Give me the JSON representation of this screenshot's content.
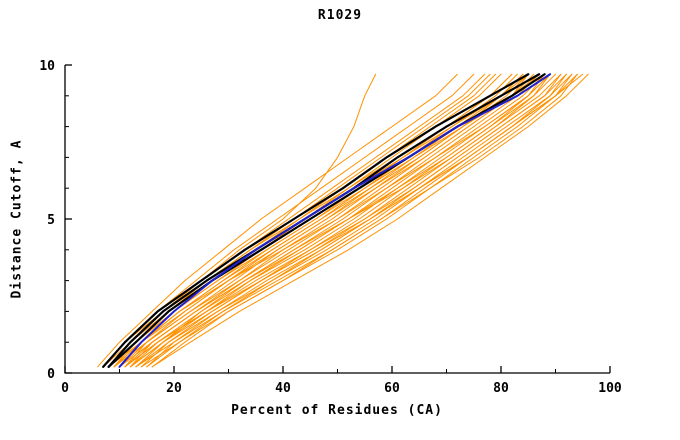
{
  "chart_data": {
    "type": "line",
    "title": "R1029",
    "xlabel": "Percent of Residues (CA)",
    "ylabel": "Distance Cutoff, A",
    "xlim": [
      0,
      100
    ],
    "ylim": [
      0,
      10
    ],
    "grid": "off",
    "legend": "none",
    "x_ticks": [
      0,
      20,
      40,
      60,
      80,
      100
    ],
    "x_minor_ticks": [
      10,
      30,
      50,
      70,
      90
    ],
    "y_ticks": [
      0,
      5,
      10
    ],
    "y_minor_ticks": [
      1,
      2,
      3,
      4,
      6,
      7,
      8,
      9
    ],
    "y_grid": [
      0.2,
      1,
      2,
      3,
      4,
      5,
      6,
      7,
      8,
      9,
      9.7
    ],
    "series_groups": [
      {
        "name": "model-curves",
        "color": "#ff9100",
        "width": 1,
        "series": [
          [
            7,
            11,
            17,
            24,
            31,
            39,
            47,
            55,
            63,
            71,
            75
          ],
          [
            8,
            12,
            19,
            26,
            34,
            42,
            50,
            58,
            66,
            74,
            78
          ],
          [
            9,
            13,
            20,
            28,
            36,
            44,
            52,
            60,
            68,
            76,
            80
          ],
          [
            10,
            14,
            21,
            29,
            37,
            46,
            54,
            62,
            70,
            78,
            82
          ],
          [
            11,
            15,
            23,
            31,
            39,
            48,
            56,
            64,
            72,
            80,
            84
          ],
          [
            12,
            16,
            24,
            32,
            41,
            50,
            58,
            66,
            74,
            82,
            86
          ],
          [
            13,
            18,
            26,
            34,
            43,
            52,
            60,
            68,
            76,
            84,
            88
          ],
          [
            14,
            19,
            27,
            36,
            45,
            54,
            62,
            70,
            78,
            86,
            90
          ],
          [
            15,
            20,
            29,
            38,
            47,
            56,
            64,
            72,
            80,
            88,
            92
          ],
          [
            16,
            22,
            30,
            40,
            49,
            58,
            66,
            74,
            82,
            90,
            95
          ],
          [
            6,
            10,
            16,
            22,
            29,
            36,
            44,
            52,
            60,
            68,
            72
          ],
          [
            8,
            13,
            20,
            27,
            35,
            43,
            51,
            59,
            67,
            75,
            79
          ],
          [
            9,
            14,
            22,
            30,
            38,
            47,
            55,
            63,
            71,
            79,
            83
          ],
          [
            10,
            16,
            24,
            33,
            42,
            51,
            59,
            67,
            75,
            83,
            87
          ],
          [
            11,
            17,
            25,
            34,
            44,
            53,
            61,
            69,
            77,
            85,
            89
          ],
          [
            12,
            18,
            27,
            36,
            46,
            55,
            63,
            71,
            79,
            87,
            91
          ],
          [
            13,
            20,
            28,
            38,
            48,
            57,
            65,
            73,
            81,
            89,
            93
          ],
          [
            7,
            12,
            18,
            25,
            33,
            41,
            49,
            57,
            65,
            73,
            77
          ],
          [
            9,
            15,
            23,
            32,
            40,
            49,
            57,
            66,
            74,
            82,
            85
          ],
          [
            10,
            15,
            22,
            30,
            39,
            48,
            57,
            65,
            73,
            81,
            85
          ],
          [
            11,
            16,
            24,
            33,
            43,
            52,
            61,
            70,
            78,
            85,
            88
          ],
          [
            12,
            17,
            26,
            35,
            45,
            55,
            64,
            72,
            80,
            88,
            91
          ],
          [
            8,
            14,
            21,
            29,
            38,
            47,
            56,
            65,
            73,
            80,
            84
          ],
          [
            13,
            19,
            28,
            37,
            47,
            56,
            65,
            74,
            82,
            90,
            94
          ],
          [
            14,
            21,
            30,
            40,
            50,
            59,
            67,
            75,
            83,
            90,
            93
          ],
          [
            9,
            13,
            19,
            26,
            34,
            43,
            52,
            61,
            70,
            78,
            82
          ],
          [
            10,
            14,
            20,
            28,
            37,
            46,
            55,
            64,
            73,
            82,
            87
          ],
          [
            8,
            12,
            18,
            25,
            32,
            40,
            46,
            50,
            53,
            55,
            57
          ],
          [
            15,
            21,
            29,
            39,
            49,
            58,
            67,
            76,
            84,
            91,
            94
          ],
          [
            7,
            11,
            18,
            26,
            35,
            44,
            53,
            62,
            71,
            80,
            85
          ],
          [
            12,
            18,
            25,
            33,
            42,
            52,
            62,
            71,
            79,
            86,
            89
          ],
          [
            16,
            23,
            32,
            42,
            52,
            61,
            69,
            77,
            85,
            92,
            96
          ],
          [
            9,
            14,
            21,
            30,
            40,
            50,
            59,
            68,
            77,
            85,
            89
          ],
          [
            11,
            17,
            26,
            36,
            46,
            56,
            65,
            74,
            82,
            89,
            92
          ]
        ]
      },
      {
        "name": "reference-curves",
        "color": "#000000",
        "width": 2.2,
        "series": [
          [
            7,
            11,
            17,
            25,
            33,
            42,
            51,
            59,
            68,
            78,
            85
          ],
          [
            8,
            12,
            18,
            26,
            35,
            44,
            53,
            61,
            70,
            80,
            87
          ],
          [
            8,
            13,
            19,
            27,
            36,
            45,
            54,
            63,
            72,
            82,
            88
          ]
        ]
      },
      {
        "name": "best-model-curve",
        "color": "#2222cc",
        "width": 2,
        "series": [
          [
            10,
            14,
            20,
            27,
            35,
            44,
            53,
            63,
            72,
            83,
            89
          ]
        ]
      }
    ]
  }
}
